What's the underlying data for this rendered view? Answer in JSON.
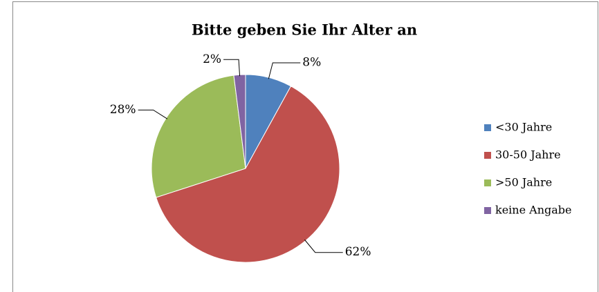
{
  "chart_data": {
    "type": "pie",
    "title": "Bitte geben Sie Ihr Alter an",
    "categories": [
      "<30 Jahre",
      "30-50 Jahre",
      ">50 Jahre",
      "keine Angabe"
    ],
    "values": [
      8,
      62,
      28,
      2
    ],
    "value_labels": [
      "8%",
      "62%",
      "28%",
      "2%"
    ],
    "colors": [
      "#4f81bd",
      "#c0504d",
      "#9bbb59",
      "#8064a2"
    ],
    "legend": "right"
  }
}
